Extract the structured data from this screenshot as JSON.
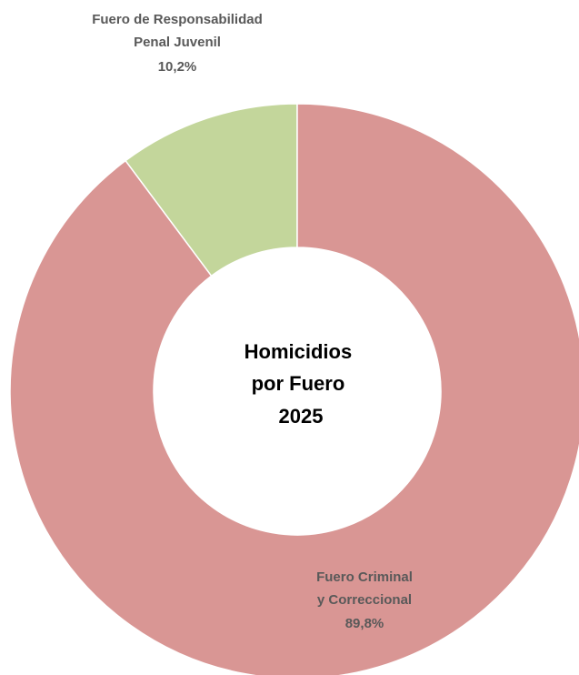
{
  "chart_data": {
    "type": "pie",
    "subtype": "donut",
    "title_lines": [
      "Homicidios",
      "por Fuero",
      "2025"
    ],
    "categories": [
      "Fuero de Responsabilidad Penal Juvenil",
      "Fuero Criminal y Correccional"
    ],
    "values": [
      10.2,
      89.8
    ],
    "value_labels": [
      "10,2%",
      "89,8%"
    ],
    "colors": [
      "#C3D69B",
      "#D99694"
    ],
    "slice_labels": [
      [
        "Fuero de Responsabilidad",
        "Penal Juvenil",
        "10,2%"
      ],
      [
        "Fuero Criminal",
        "y Correccional",
        "89,8%"
      ]
    ],
    "legend": "none"
  }
}
